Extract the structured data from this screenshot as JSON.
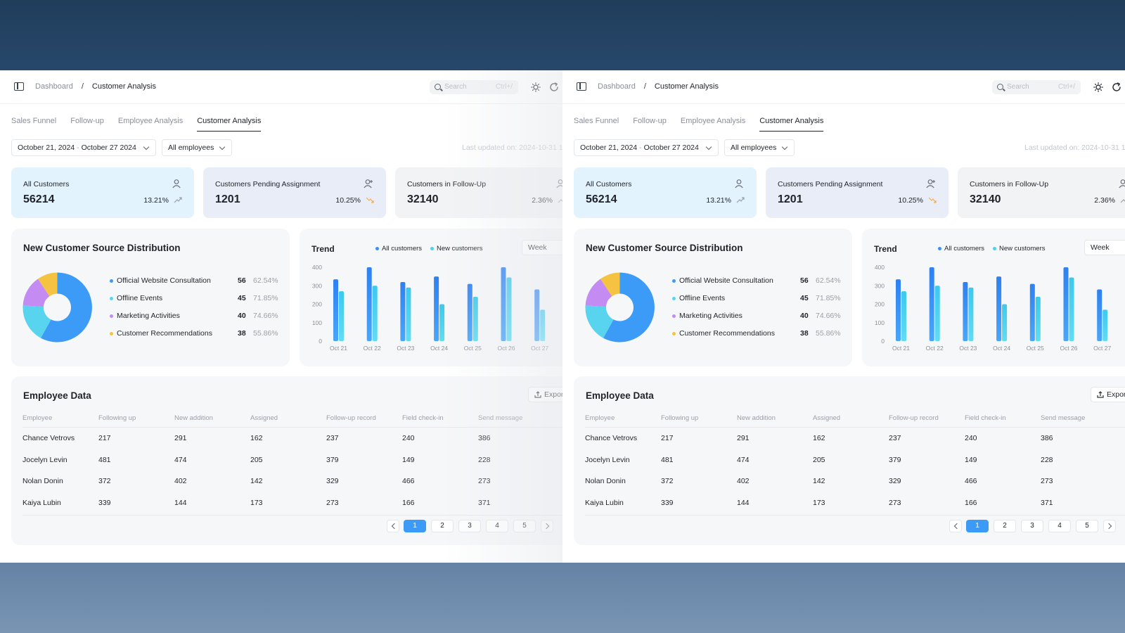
{
  "breadcrumb": {
    "root": "Dashboard",
    "separator": "/",
    "current": "Customer Analysis"
  },
  "search": {
    "placeholder": "Search",
    "shortcut": "Ctrl+/"
  },
  "tabs": [
    "Sales Funnel",
    "Follow-up",
    "Employee Analysis",
    "Customer Analysis"
  ],
  "active_tab": "Customer Analysis",
  "filters": {
    "date_start": "October 21, 2024",
    "date_separator": "-",
    "date_end": "October 27 2024",
    "employees": "All employees",
    "last_updated": "Last updated on: 2024-10-31 1"
  },
  "stats": [
    {
      "label": "All Customers",
      "value": "56214",
      "pct": "13.21%",
      "icon": "user-icon",
      "trend": "up"
    },
    {
      "label": "Customers Pending Assignment",
      "value": "1201",
      "pct": "10.25%",
      "icon": "user-add-icon",
      "trend": "down"
    },
    {
      "label": "Customers in Follow-Up",
      "value": "32140",
      "pct": "2.36%",
      "icon": "user-icon",
      "trend": "up"
    }
  ],
  "source": {
    "title": "New Customer Source Distribution",
    "items": [
      {
        "name": "Official Website Consultation",
        "count": "56",
        "pct": "62.54%",
        "color": "#3b9bf7"
      },
      {
        "name": "Offline Events",
        "count": "45",
        "pct": "71.85%",
        "color": "#58d4ee"
      },
      {
        "name": "Marketing Activities",
        "count": "40",
        "pct": "74.66%",
        "color": "#c48bf2"
      },
      {
        "name": "Customer Recommendations",
        "count": "38",
        "pct": "55.86%",
        "color": "#f5c242"
      }
    ]
  },
  "trend": {
    "title": "Trend",
    "legend_all": "All customers",
    "legend_new": "New customers",
    "period": "Week"
  },
  "chart_data": {
    "type": "bar",
    "title": "Trend",
    "categories": [
      "Oct 21",
      "Oct 22",
      "Oct 23",
      "Oct 24",
      "Oct 25",
      "Oct 26",
      "Oct 27"
    ],
    "series": [
      {
        "name": "All customers",
        "values": [
          335,
          400,
          320,
          350,
          310,
          400,
          280
        ],
        "color": "#3b8ff5"
      },
      {
        "name": "New customers",
        "values": [
          270,
          300,
          290,
          200,
          240,
          345,
          170
        ],
        "color": "#4fd1ec"
      }
    ],
    "yticks": [
      0,
      100,
      200,
      300,
      400
    ],
    "ylim": [
      0,
      400
    ]
  },
  "employees": {
    "title": "Employee Data",
    "export_label": "Export",
    "columns": [
      "Employee",
      "Following up",
      "New addition",
      "Assigned",
      "Follow-up record",
      "Field check-in",
      "Send message"
    ],
    "rows": [
      [
        "Chance Vetrovs",
        "217",
        "291",
        "162",
        "237",
        "240",
        "386"
      ],
      [
        "Jocelyn Levin",
        "481",
        "474",
        "205",
        "379",
        "149",
        "228"
      ],
      [
        "Nolan Donin",
        "372",
        "402",
        "142",
        "329",
        "466",
        "273"
      ],
      [
        "Kaiya Lubin",
        "339",
        "144",
        "173",
        "273",
        "166",
        "371"
      ]
    ],
    "pages": [
      "1",
      "2",
      "3",
      "4",
      "5"
    ],
    "active_page": "1"
  },
  "colors": {
    "card_all": "#e3f3fe",
    "card_pending": "#e8edf7",
    "card_followup": "#f2f3f5",
    "accent": "#3b9bf7"
  }
}
